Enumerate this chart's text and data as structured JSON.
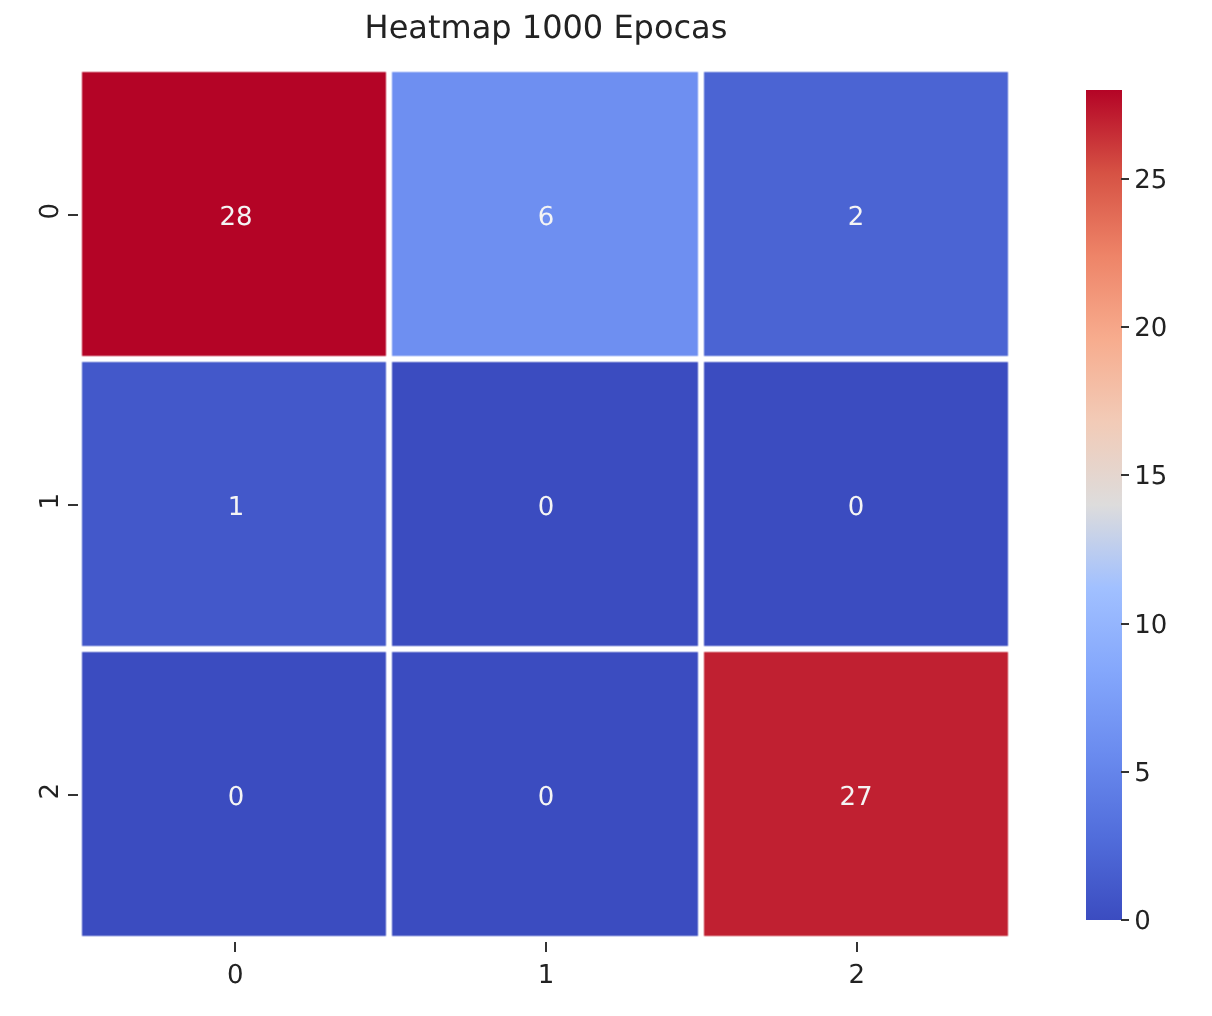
{
  "chart_data": {
    "type": "heatmap",
    "title": "Heatmap 1000 Epocas",
    "categories": [
      "0",
      "1",
      "2"
    ],
    "y_categories": [
      "0",
      "1",
      "2"
    ],
    "cells": [
      [
        28,
        6,
        2
      ],
      [
        1,
        0,
        0
      ],
      [
        0,
        0,
        27
      ]
    ],
    "data_labels": true,
    "clim": [
      0,
      28
    ],
    "cticks": [
      0,
      5,
      10,
      15,
      20,
      25
    ]
  }
}
